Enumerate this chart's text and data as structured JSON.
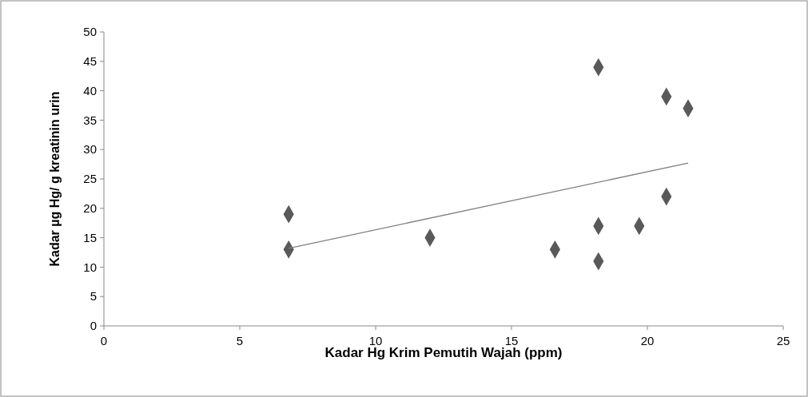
{
  "chart_data": {
    "type": "scatter",
    "xlabel": "Kadar Hg Krim Pemutih Wajah (ppm)",
    "ylabel": "Kadar µg Hg/ g kreatinin urin",
    "xlim": [
      0,
      25
    ],
    "xticks": [
      0,
      5,
      10,
      15,
      20,
      25
    ],
    "ylim": [
      0,
      50
    ],
    "yticks": [
      0,
      5,
      10,
      15,
      20,
      25,
      30,
      35,
      40,
      45,
      50
    ],
    "grid": false,
    "series": [
      {
        "color": "#595959",
        "marker": "diamond",
        "x": [
          6.8,
          6.8,
          12,
          16.6,
          18.2,
          18.2,
          18.2,
          19.7,
          20.7,
          20.7,
          21.5
        ],
        "values": [
          19,
          13,
          15,
          13,
          44,
          17,
          11,
          17,
          39,
          22,
          37
        ]
      },
      {
        "type": "line",
        "color": "#808080",
        "marker": "none",
        "x": [
          6.8,
          21.5
        ],
        "values": [
          13.2,
          27.7
        ]
      }
    ]
  }
}
